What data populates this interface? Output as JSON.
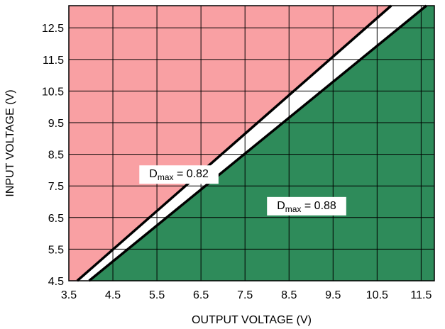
{
  "chart_data": {
    "type": "area",
    "xlabel": "OUTPUT VOLTAGE (V)",
    "ylabel": "INPUT VOLTAGE (V)",
    "xlim": [
      3.5,
      11.8
    ],
    "ylim": [
      4.5,
      13.2
    ],
    "x_ticks": [
      "3.5",
      "4.5",
      "5.5",
      "6.5",
      "7.5",
      "8.5",
      "9.5",
      "10.5",
      "11.5"
    ],
    "y_ticks": [
      "4.5",
      "5.5",
      "6.5",
      "7.5",
      "8.5",
      "9.5",
      "10.5",
      "11.5",
      "12.5"
    ],
    "grid": true,
    "colors": {
      "upper_region": "#f9a0a3",
      "lower_region": "#2e8b5a",
      "band": "#ffffff",
      "lines": "#000000",
      "grid": "#000000"
    },
    "series": [
      {
        "name": "Dmax = 0.82",
        "x": [
          3.69,
          10.82
        ],
        "y": [
          4.5,
          13.2
        ]
      },
      {
        "name": "Dmax = 0.88",
        "x": [
          3.96,
          11.62
        ],
        "y": [
          4.5,
          13.2
        ]
      }
    ],
    "annotations": [
      {
        "main": "D",
        "sub": "max",
        "rest": " = 0.82",
        "x": 5.1,
        "y": 8.15
      },
      {
        "main": "D",
        "sub": "max",
        "rest": " = 0.88",
        "x": 8.0,
        "y": 7.15
      }
    ]
  }
}
